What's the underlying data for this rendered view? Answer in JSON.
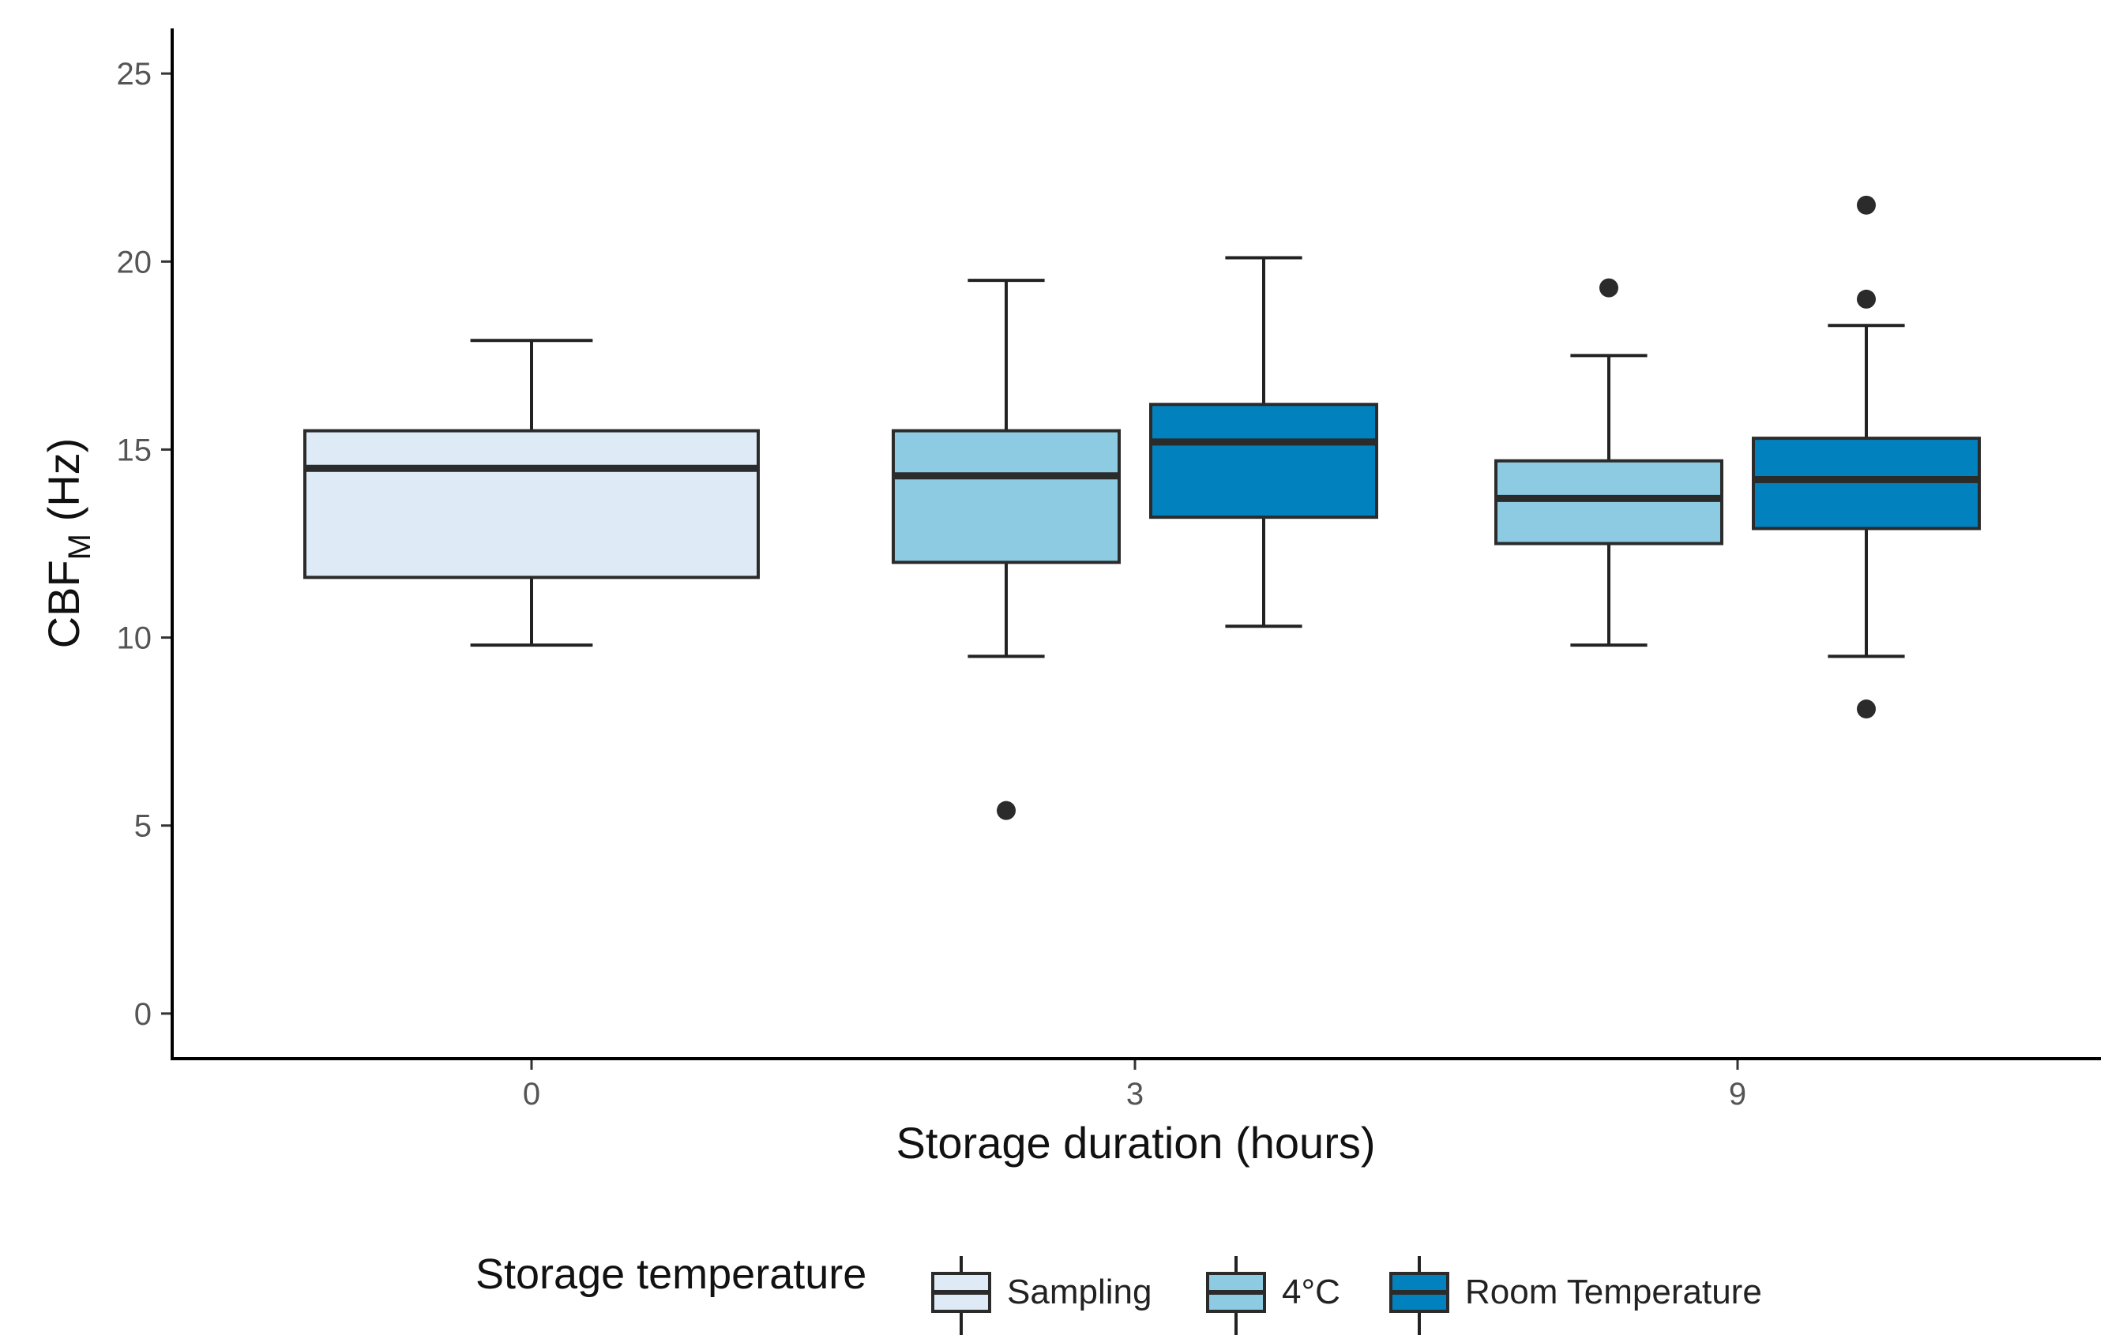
{
  "chart_data": {
    "type": "boxplot",
    "title": "",
    "xlabel": "Storage duration (hours)",
    "ylabel_main": "CBF",
    "ylabel_sub": "M",
    "ylabel_unit": " (Hz)",
    "ylim": [
      -1.2,
      26.2
    ],
    "yticks": [
      0,
      5,
      10,
      15,
      20,
      25
    ],
    "categories": [
      "0",
      "3",
      "9"
    ],
    "legend": {
      "title": "Storage temperature",
      "position": "bottom",
      "entries": [
        {
          "name": "Sampling",
          "color": "#deebf7"
        },
        {
          "name": "4°C",
          "color": "#8dcbe3"
        },
        {
          "name": "Room Temperature",
          "color": "#0281bf"
        }
      ]
    },
    "boxes": [
      {
        "category": "0",
        "group": "Sampling",
        "color": "#deebf7",
        "whisker_low": 9.8,
        "q1": 11.6,
        "median": 14.5,
        "q3": 15.5,
        "whisker_high": 17.9,
        "outliers": []
      },
      {
        "category": "3",
        "group": "4°C",
        "color": "#8dcbe3",
        "whisker_low": 9.5,
        "q1": 12.0,
        "median": 14.3,
        "q3": 15.5,
        "whisker_high": 19.5,
        "outliers": [
          5.4
        ]
      },
      {
        "category": "3",
        "group": "Room Temperature",
        "color": "#0281bf",
        "whisker_low": 10.3,
        "q1": 13.2,
        "median": 15.2,
        "q3": 16.2,
        "whisker_high": 20.1,
        "outliers": []
      },
      {
        "category": "9",
        "group": "4°C",
        "color": "#8dcbe3",
        "whisker_low": 9.8,
        "q1": 12.5,
        "median": 13.7,
        "q3": 14.7,
        "whisker_high": 17.5,
        "outliers": [
          19.3
        ]
      },
      {
        "category": "9",
        "group": "Room Temperature",
        "color": "#0281bf",
        "whisker_low": 9.5,
        "q1": 12.9,
        "median": 14.2,
        "q3": 15.3,
        "whisker_high": 18.3,
        "outliers": [
          21.5,
          19.0,
          8.1
        ]
      }
    ]
  }
}
